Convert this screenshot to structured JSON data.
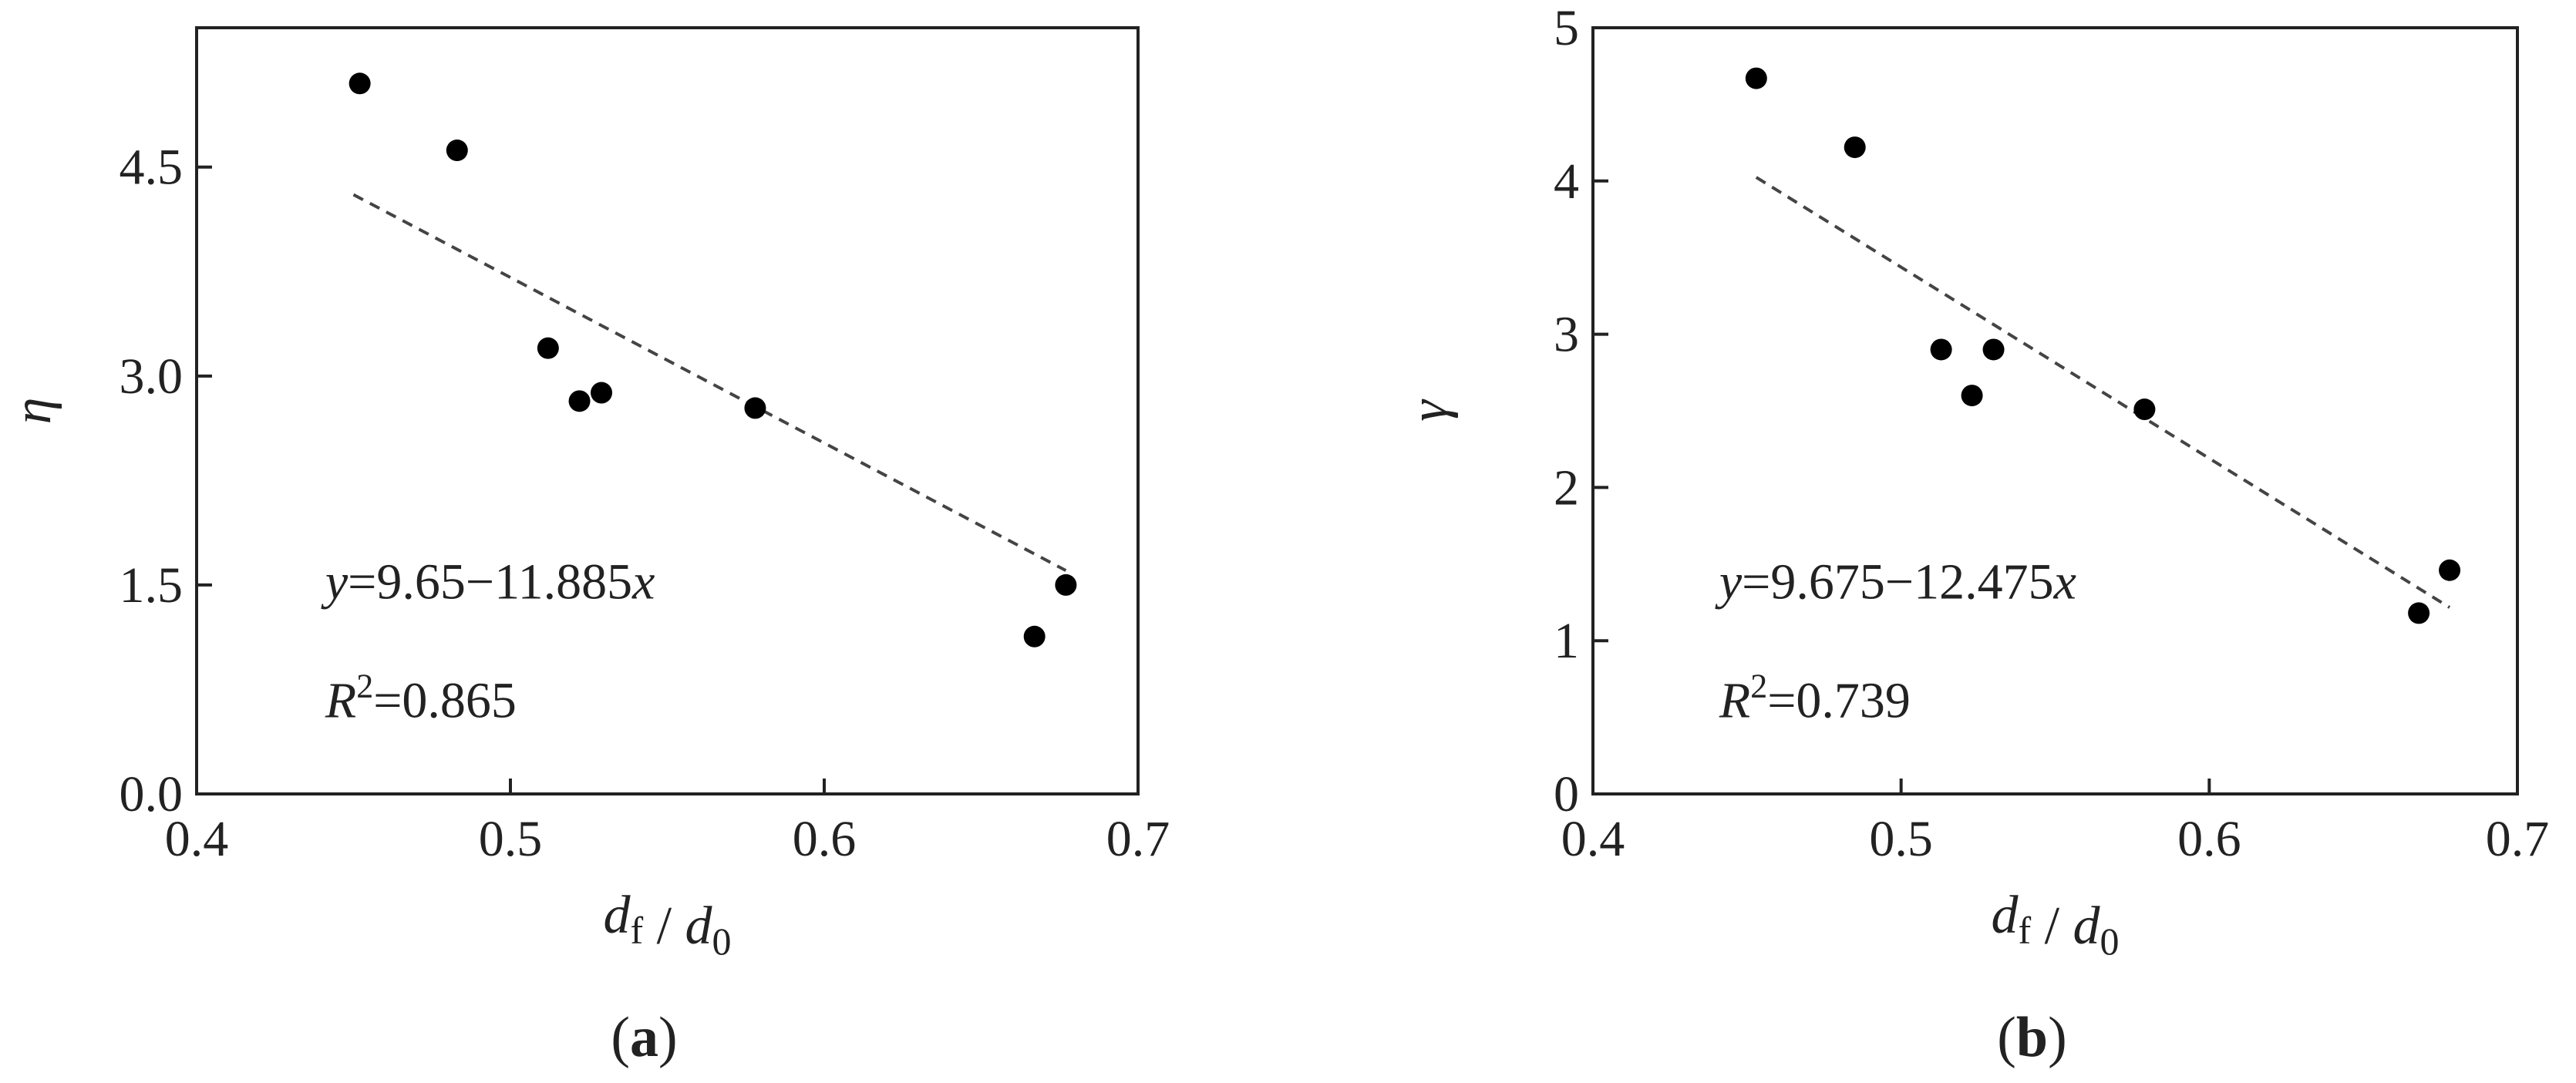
{
  "chart_data": [
    {
      "type": "scatter",
      "panel": "(a)",
      "panel_letter": "a",
      "x": [
        0.452,
        0.483,
        0.512,
        0.522,
        0.529,
        0.578,
        0.667,
        0.677
      ],
      "y": [
        5.1,
        4.62,
        3.2,
        2.82,
        2.88,
        2.77,
        1.13,
        1.5
      ],
      "fit": {
        "intercept": 9.65,
        "slope": -11.885,
        "x_range": [
          0.45,
          0.677
        ],
        "style": "dashed"
      },
      "equation": "y=9.65−11.885x",
      "r2": "R²=0.865",
      "xlabel": "df / d0",
      "ylabel": "η",
      "xlim": [
        0.4,
        0.7
      ],
      "ylim": [
        0.0,
        5.5
      ],
      "xticks": [
        0.4,
        0.5,
        0.6,
        0.7
      ],
      "xtick_labels": [
        "0.4",
        "0.5",
        "0.6",
        "0.7"
      ],
      "yticks": [
        0.0,
        1.5,
        3.0,
        4.5
      ],
      "ytick_labels": [
        "0.0",
        "1.5",
        "3.0",
        "4.5"
      ],
      "grid": false,
      "marker_color": "#000000",
      "line_color": "#444444"
    },
    {
      "type": "scatter",
      "panel": "(b)",
      "panel_letter": "b",
      "x": [
        0.453,
        0.485,
        0.513,
        0.523,
        0.53,
        0.579,
        0.668,
        0.678
      ],
      "y": [
        4.67,
        4.22,
        2.9,
        2.6,
        2.9,
        2.51,
        1.18,
        1.46
      ],
      "fit": {
        "intercept": 9.675,
        "slope": -12.475,
        "x_range": [
          0.453,
          0.678
        ],
        "style": "dashed"
      },
      "equation": "y=9.675−12.475x",
      "r2": "R²=0.739",
      "xlabel": "df / d0",
      "ylabel": "γ",
      "xlim": [
        0.4,
        0.7
      ],
      "ylim": [
        0,
        5
      ],
      "xticks": [
        0.4,
        0.5,
        0.6,
        0.7
      ],
      "xtick_labels": [
        "0.4",
        "0.5",
        "0.6",
        "0.7"
      ],
      "yticks": [
        0,
        1,
        2,
        3,
        4,
        5
      ],
      "ytick_labels": [
        "0",
        "1",
        "2",
        "3",
        "4",
        "5"
      ],
      "grid": false,
      "marker_color": "#000000",
      "line_color": "#444444"
    }
  ]
}
